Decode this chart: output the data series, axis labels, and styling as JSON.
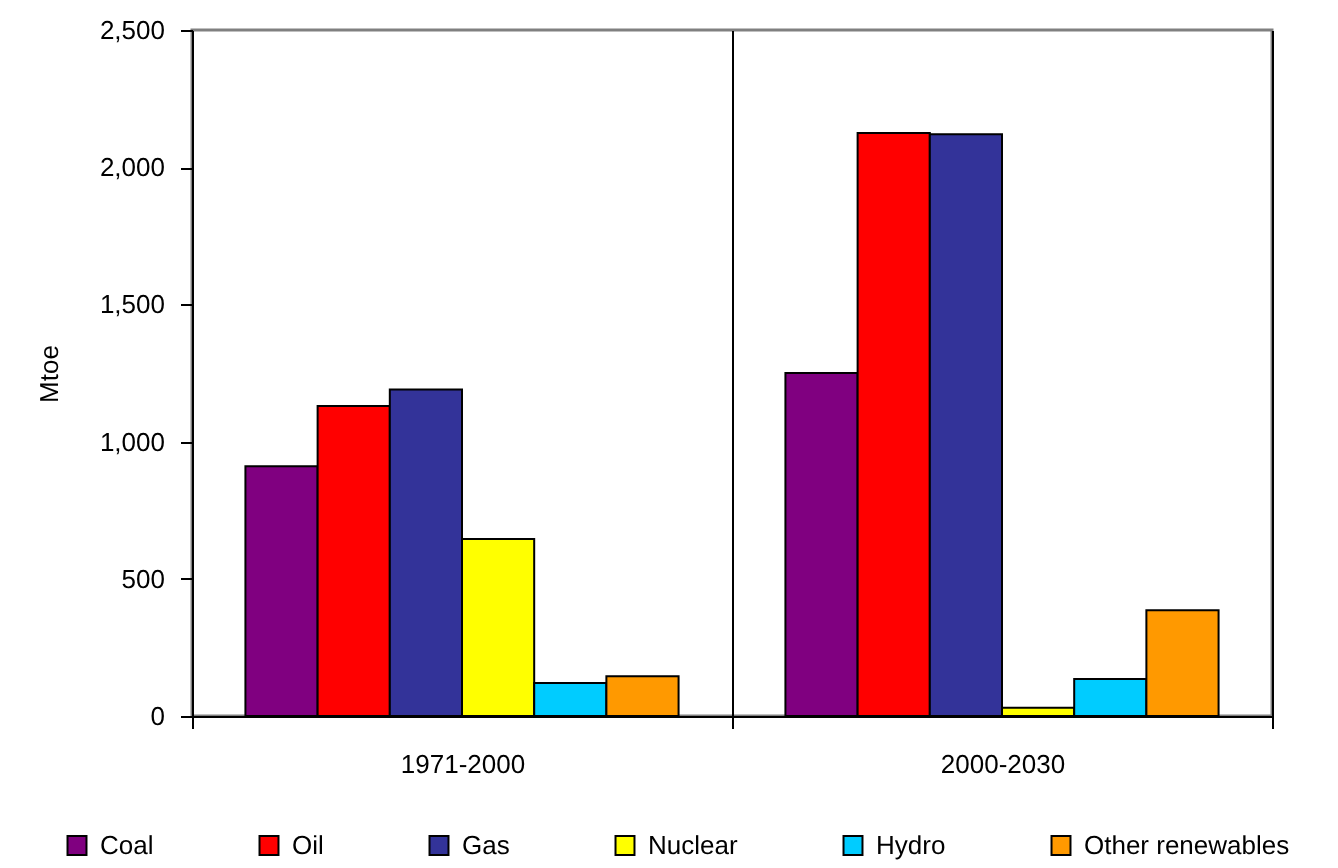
{
  "chart_data": {
    "type": "bar",
    "ylabel": "Mtoe",
    "categories": [
      "1971-2000",
      "2000-2030"
    ],
    "series": [
      {
        "name": "Coal",
        "color": "#800080",
        "values": [
          910,
          1250
        ]
      },
      {
        "name": "Oil",
        "color": "#ff0000",
        "values": [
          1130,
          2125
        ]
      },
      {
        "name": "Gas",
        "color": "#333399",
        "values": [
          1190,
          2120
        ]
      },
      {
        "name": "Nuclear",
        "color": "#ffff00",
        "values": [
          645,
          30
        ]
      },
      {
        "name": "Hydro",
        "color": "#00ccff",
        "values": [
          120,
          135
        ]
      },
      {
        "name": "Other renewables",
        "color": "#ff9900",
        "values": [
          145,
          385
        ]
      }
    ],
    "ylim": [
      0,
      2500
    ],
    "yticks": [
      0,
      500,
      {
        "value": 1000,
        "label": "1,000"
      },
      {
        "value": 1500,
        "label": "1,500"
      },
      {
        "value": 2000,
        "label": "2,000"
      },
      {
        "value": 2500,
        "label": "2,500"
      }
    ],
    "grid": "x",
    "legend": "bottom"
  }
}
